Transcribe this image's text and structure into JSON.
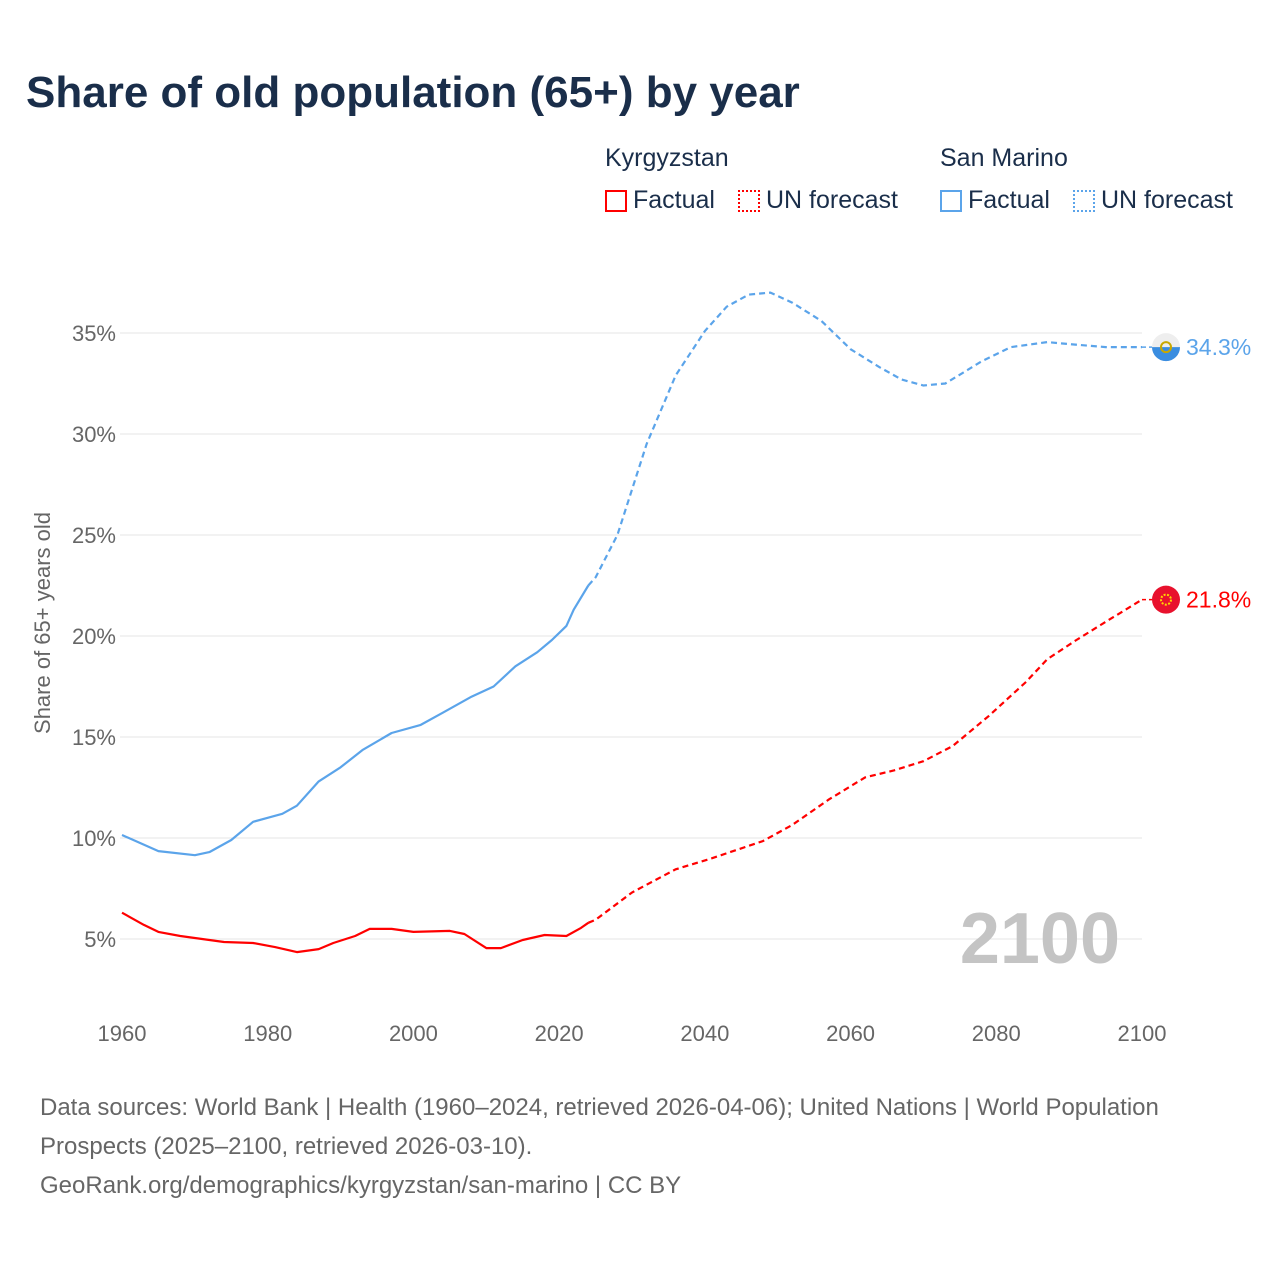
{
  "title": "Share of old population (65+) by year",
  "legend": {
    "groups": [
      {
        "name": "Kyrgyzstan",
        "factual": "Factual",
        "forecast": "UN forecast",
        "color": "#ff0000"
      },
      {
        "name": "San Marino",
        "factual": "Factual",
        "forecast": "UN forecast",
        "color": "#5ba4ea"
      }
    ]
  },
  "chart_data": {
    "type": "line",
    "title": "Share of old population (65+) by year",
    "ylabel": "Share of 65+ years old",
    "xlim": [
      1960,
      2100
    ],
    "ylim": [
      0,
      40
    ],
    "xticks": [
      1960,
      1980,
      2000,
      2020,
      2040,
      2060,
      2080,
      2100
    ],
    "xtick_labels": [
      "1960",
      "1980",
      "2000",
      "2020",
      "2040",
      "2060",
      "2080",
      "2100"
    ],
    "yticks": [
      5,
      10,
      15,
      20,
      25,
      30,
      35
    ],
    "ytick_labels": [
      "5%",
      "10%",
      "15%",
      "20%",
      "25%",
      "30%",
      "35%"
    ],
    "grid": true,
    "year_label": "2100",
    "series": [
      {
        "name": "Kyrgyzstan",
        "color": "#ff0000",
        "end_label": "21.8%",
        "factual": [
          [
            1960,
            6.3
          ],
          [
            1963,
            5.7
          ],
          [
            1965,
            5.35
          ],
          [
            1968,
            5.15
          ],
          [
            1971,
            5.0
          ],
          [
            1974,
            4.85
          ],
          [
            1978,
            4.8
          ],
          [
            1981,
            4.6
          ],
          [
            1984,
            4.35
          ],
          [
            1987,
            4.5
          ],
          [
            1989,
            4.8
          ],
          [
            1992,
            5.15
          ],
          [
            1994,
            5.5
          ],
          [
            1997,
            5.5
          ],
          [
            2000,
            5.35
          ],
          [
            2005,
            5.4
          ],
          [
            2007,
            5.25
          ],
          [
            2010,
            4.55
          ],
          [
            2012,
            4.55
          ],
          [
            2015,
            4.95
          ],
          [
            2018,
            5.2
          ],
          [
            2021,
            5.15
          ],
          [
            2023,
            5.55
          ],
          [
            2024,
            5.8
          ]
        ],
        "forecast": [
          [
            2024,
            5.8
          ],
          [
            2025,
            5.95
          ],
          [
            2030,
            7.3
          ],
          [
            2036,
            8.45
          ],
          [
            2041,
            9.0
          ],
          [
            2048,
            9.85
          ],
          [
            2052,
            10.65
          ],
          [
            2057,
            11.9
          ],
          [
            2062,
            13.0
          ],
          [
            2066,
            13.35
          ],
          [
            2070,
            13.8
          ],
          [
            2074,
            14.55
          ],
          [
            2079,
            16.05
          ],
          [
            2084,
            17.7
          ],
          [
            2087,
            18.85
          ],
          [
            2091,
            19.8
          ],
          [
            2095,
            20.7
          ],
          [
            2100,
            21.8
          ]
        ]
      },
      {
        "name": "San Marino",
        "color": "#5ba4ea",
        "end_label": "34.3%",
        "factual": [
          [
            1960,
            10.15
          ],
          [
            1965,
            9.35
          ],
          [
            1970,
            9.15
          ],
          [
            1972,
            9.3
          ],
          [
            1975,
            9.9
          ],
          [
            1978,
            10.8
          ],
          [
            1980,
            11.0
          ],
          [
            1982,
            11.2
          ],
          [
            1984,
            11.6
          ],
          [
            1987,
            12.8
          ],
          [
            1990,
            13.5
          ],
          [
            1993,
            14.35
          ],
          [
            1997,
            15.2
          ],
          [
            2001,
            15.6
          ],
          [
            2004,
            16.2
          ],
          [
            2008,
            17.0
          ],
          [
            2011,
            17.5
          ],
          [
            2014,
            18.5
          ],
          [
            2017,
            19.2
          ],
          [
            2019,
            19.8
          ],
          [
            2021,
            20.5
          ],
          [
            2022,
            21.3
          ],
          [
            2024,
            22.5
          ]
        ],
        "forecast": [
          [
            2024,
            22.5
          ],
          [
            2025,
            22.9
          ],
          [
            2028,
            25.0
          ],
          [
            2032,
            29.5
          ],
          [
            2036,
            32.9
          ],
          [
            2040,
            35.1
          ],
          [
            2043,
            36.3
          ],
          [
            2046,
            36.9
          ],
          [
            2049,
            37.0
          ],
          [
            2052,
            36.5
          ],
          [
            2056,
            35.6
          ],
          [
            2060,
            34.2
          ],
          [
            2064,
            33.3
          ],
          [
            2067,
            32.7
          ],
          [
            2070,
            32.4
          ],
          [
            2073,
            32.5
          ],
          [
            2078,
            33.6
          ],
          [
            2082,
            34.3
          ],
          [
            2087,
            34.55
          ],
          [
            2090,
            34.45
          ],
          [
            2095,
            34.3
          ],
          [
            2100,
            34.3
          ]
        ]
      }
    ]
  },
  "sources": {
    "line1": "Data sources: World Bank | Health (1960–2024, retrieved 2026-04-06); United Nations | World Population Prospects (2025–2100, retrieved 2026-03-10).",
    "line2": "GeoRank.org/demographics/kyrgyzstan/san-marino | CC BY"
  }
}
